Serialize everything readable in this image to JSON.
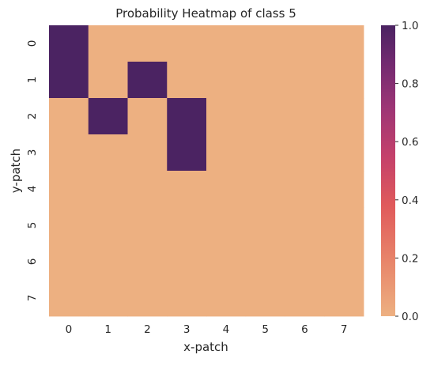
{
  "chart_data": {
    "type": "heatmap",
    "title": "Probability Heatmap of class 5",
    "xlabel": "x-patch",
    "ylabel": "y-patch",
    "x_categories": [
      "0",
      "1",
      "2",
      "3",
      "4",
      "5",
      "6",
      "7"
    ],
    "y_categories": [
      "0",
      "1",
      "2",
      "3",
      "4",
      "5",
      "6",
      "7"
    ],
    "values": [
      [
        1,
        0,
        0,
        0,
        0,
        0,
        0,
        0
      ],
      [
        1,
        0,
        1,
        0,
        0,
        0,
        0,
        0
      ],
      [
        0,
        1,
        0,
        1,
        0,
        0,
        0,
        0
      ],
      [
        0,
        0,
        0,
        1,
        0,
        0,
        0,
        0
      ],
      [
        0,
        0,
        0,
        0,
        0,
        0,
        0,
        0
      ],
      [
        0,
        0,
        0,
        0,
        0,
        0,
        0,
        0
      ],
      [
        0,
        0,
        0,
        0,
        0,
        0,
        0,
        0
      ],
      [
        0,
        0,
        0,
        0,
        0,
        0,
        0,
        0
      ]
    ],
    "colorbar": {
      "range": [
        0,
        1
      ],
      "ticks": [
        0.0,
        0.2,
        0.4,
        0.6,
        0.8,
        1.0
      ],
      "tick_labels": [
        "0.0",
        "0.2",
        "0.4",
        "0.6",
        "0.8",
        "1.0"
      ],
      "colormap": "flare",
      "low_color": "#edb081",
      "high_color": "#4b2362"
    },
    "grid": false
  }
}
